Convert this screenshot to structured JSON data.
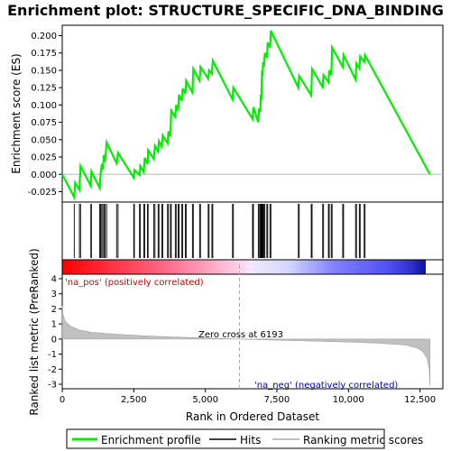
{
  "chart_data": {
    "type": "line",
    "title": "Enrichment plot: STRUCTURE_SPECIFIC_DNA_BINDING",
    "xlabel": "Rank in Ordered Dataset",
    "ylabel_top": "Enrichment score (ES)",
    "ylabel_bottom": "Ranked list metric (PreRanked)",
    "xlim": [
      0,
      13300
    ],
    "es_ylim": [
      -0.04,
      0.215
    ],
    "metric_ylim": [
      -3.3,
      4.3
    ],
    "x_ticks": [
      0,
      2500,
      5000,
      7500,
      10000,
      12500
    ],
    "x_tick_labels": [
      "0",
      "2,500",
      "5,000",
      "7,500",
      "10,000",
      "12,500"
    ],
    "es_ticks": [
      -0.025,
      0.0,
      0.025,
      0.05,
      0.075,
      0.1,
      0.125,
      0.15,
      0.175,
      0.2
    ],
    "es_tick_labels": [
      "-0.025",
      "0.000",
      "0.025",
      "0.050",
      "0.075",
      "0.100",
      "0.125",
      "0.150",
      "0.175",
      "0.200"
    ],
    "metric_ticks": [
      -3,
      -2,
      -1,
      0,
      1,
      2,
      3,
      4
    ],
    "metric_tick_labels": [
      "-3",
      "-2",
      "-1",
      "0",
      "1",
      "2",
      "3",
      "4"
    ],
    "grid": false,
    "legend_position": "bottom",
    "series": [
      {
        "name": "Enrichment profile",
        "color": "#00ee00",
        "points": [
          [
            0,
            0.0
          ],
          [
            420,
            -0.033
          ],
          [
            450,
            -0.012
          ],
          [
            600,
            -0.022
          ],
          [
            640,
            0.012
          ],
          [
            1000,
            -0.017
          ],
          [
            1020,
            0.004
          ],
          [
            1310,
            -0.02
          ],
          [
            1340,
            0.0
          ],
          [
            1380,
            0.015
          ],
          [
            1420,
            0.007
          ],
          [
            1460,
            0.028
          ],
          [
            1500,
            0.018
          ],
          [
            1550,
            0.046
          ],
          [
            1900,
            0.016
          ],
          [
            1950,
            0.031
          ],
          [
            2500,
            -0.005
          ],
          [
            2520,
            0.006
          ],
          [
            2700,
            -0.001
          ],
          [
            2730,
            0.012
          ],
          [
            2850,
            0.003
          ],
          [
            2880,
            0.024
          ],
          [
            2980,
            0.015
          ],
          [
            3000,
            0.035
          ],
          [
            3200,
            0.022
          ],
          [
            3240,
            0.041
          ],
          [
            3350,
            0.033
          ],
          [
            3380,
            0.048
          ],
          [
            3480,
            0.04
          ],
          [
            3510,
            0.056
          ],
          [
            3680,
            0.045
          ],
          [
            3710,
            0.062
          ],
          [
            3780,
            0.055
          ],
          [
            3810,
            0.092
          ],
          [
            3950,
            0.083
          ],
          [
            3980,
            0.1
          ],
          [
            4050,
            0.092
          ],
          [
            4080,
            0.115
          ],
          [
            4180,
            0.106
          ],
          [
            4210,
            0.124
          ],
          [
            4300,
            0.116
          ],
          [
            4330,
            0.135
          ],
          [
            4550,
            0.118
          ],
          [
            4580,
            0.152
          ],
          [
            4800,
            0.135
          ],
          [
            4830,
            0.155
          ],
          [
            5100,
            0.138
          ],
          [
            5130,
            0.15
          ],
          [
            5230,
            0.145
          ],
          [
            5260,
            0.164
          ],
          [
            5950,
            0.108
          ],
          [
            5980,
            0.125
          ],
          [
            6650,
            0.08
          ],
          [
            6680,
            0.097
          ],
          [
            6850,
            0.075
          ],
          [
            6880,
            0.095
          ],
          [
            6920,
            0.09
          ],
          [
            6940,
            0.115
          ],
          [
            6960,
            0.108
          ],
          [
            6980,
            0.15
          ],
          [
            7000,
            0.142
          ],
          [
            7020,
            0.162
          ],
          [
            7050,
            0.155
          ],
          [
            7080,
            0.175
          ],
          [
            7150,
            0.168
          ],
          [
            7180,
            0.19
          ],
          [
            7260,
            0.183
          ],
          [
            7290,
            0.207
          ],
          [
            8250,
            0.125
          ],
          [
            8280,
            0.142
          ],
          [
            8700,
            0.114
          ],
          [
            8730,
            0.152
          ],
          [
            9100,
            0.126
          ],
          [
            9130,
            0.143
          ],
          [
            9300,
            0.133
          ],
          [
            9330,
            0.15
          ],
          [
            9400,
            0.143
          ],
          [
            9430,
            0.183
          ],
          [
            9800,
            0.155
          ],
          [
            9830,
            0.172
          ],
          [
            10250,
            0.137
          ],
          [
            10280,
            0.16
          ],
          [
            10380,
            0.153
          ],
          [
            10410,
            0.17
          ],
          [
            10550,
            0.162
          ],
          [
            10580,
            0.172
          ],
          [
            12850,
            0.0
          ]
        ]
      }
    ],
    "hits": [
      420,
      600,
      640,
      1000,
      1020,
      1310,
      1340,
      1380,
      1420,
      1460,
      1500,
      1550,
      1900,
      1950,
      2500,
      2520,
      2700,
      2730,
      2850,
      2880,
      2980,
      3000,
      3200,
      3240,
      3350,
      3380,
      3480,
      3510,
      3680,
      3710,
      3780,
      3810,
      3950,
      3980,
      4050,
      4080,
      4180,
      4210,
      4300,
      4330,
      4550,
      4580,
      4800,
      4830,
      5100,
      5130,
      5230,
      5260,
      5950,
      5980,
      6650,
      6680,
      6850,
      6880,
      6920,
      6940,
      6960,
      6980,
      7000,
      7020,
      7050,
      7080,
      7150,
      7180,
      7260,
      7290,
      8250,
      8280,
      8700,
      8730,
      9100,
      9130,
      9300,
      9330,
      9400,
      9430,
      9800,
      9830,
      10250,
      10280,
      10380,
      10410,
      10550,
      10580
    ],
    "metric_curve": [
      [
        0,
        2.2
      ],
      [
        30,
        1.6
      ],
      [
        100,
        1.2
      ],
      [
        300,
        0.85
      ],
      [
        600,
        0.6
      ],
      [
        1000,
        0.45
      ],
      [
        2000,
        0.3
      ],
      [
        3000,
        0.2
      ],
      [
        4000,
        0.13
      ],
      [
        5000,
        0.07
      ],
      [
        6193,
        0.0
      ],
      [
        7000,
        -0.05
      ],
      [
        8000,
        -0.1
      ],
      [
        9000,
        -0.15
      ],
      [
        10000,
        -0.2
      ],
      [
        11000,
        -0.27
      ],
      [
        12000,
        -0.4
      ],
      [
        12400,
        -0.6
      ],
      [
        12600,
        -0.85
      ],
      [
        12750,
        -1.3
      ],
      [
        12820,
        -2.0
      ],
      [
        12850,
        -3.1
      ]
    ],
    "zero_cross_label": "Zero cross at 6193",
    "zero_cross_rank": 6193,
    "pos_label": "'na_pos' (positively correlated)",
    "neg_label": "'na_neg' (negatively correlated)",
    "colors": {
      "profile": "#00ee00",
      "hits": "#000000",
      "metric_fill": "#c0c0c0",
      "pos_text": "#cc0000",
      "neg_text": "#0000cc",
      "zero_line": "#aaaaaa"
    },
    "legend": [
      {
        "label": "Enrichment profile",
        "color": "#00ee00"
      },
      {
        "label": "Hits",
        "color": "#000000"
      },
      {
        "label": "Ranking metric scores",
        "color": "#c0c0c0"
      }
    ]
  }
}
